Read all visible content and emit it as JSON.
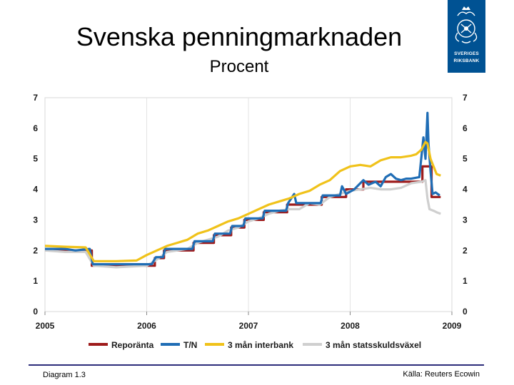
{
  "title": "Svenska penningmarknaden",
  "subtitle": "Procent",
  "logo": {
    "icon": "riksbank-crest-icon",
    "line1": "SVERIGES",
    "line2": "RIKSBANK"
  },
  "footer": {
    "left": "Diagram 1.3",
    "right": "Källa: Reuters Ecowin"
  },
  "chart_data": {
    "type": "line",
    "title": "Svenska penningmarknaden",
    "subtitle": "Procent",
    "xlabel": "",
    "ylabel": "",
    "xlim": [
      2005,
      2009
    ],
    "ylim": [
      0,
      7
    ],
    "x_ticks": [
      "2005",
      "2006",
      "2007",
      "2008",
      "2009"
    ],
    "y_ticks": [
      0,
      1,
      2,
      3,
      4,
      5,
      6,
      7
    ],
    "y_axis_both_sides": true,
    "grid": "vertical",
    "legend_position": "bottom",
    "series": [
      {
        "name": "Reporänta",
        "color": "#9e1b1b",
        "step": true,
        "points": [
          [
            2005.0,
            2.0
          ],
          [
            2005.46,
            2.0
          ],
          [
            2005.46,
            1.5
          ],
          [
            2006.08,
            1.5
          ],
          [
            2006.08,
            1.75
          ],
          [
            2006.17,
            1.75
          ],
          [
            2006.17,
            2.0
          ],
          [
            2006.46,
            2.0
          ],
          [
            2006.46,
            2.25
          ],
          [
            2006.66,
            2.25
          ],
          [
            2006.66,
            2.5
          ],
          [
            2006.83,
            2.5
          ],
          [
            2006.83,
            2.75
          ],
          [
            2006.96,
            2.75
          ],
          [
            2006.96,
            3.0
          ],
          [
            2007.15,
            3.0
          ],
          [
            2007.15,
            3.25
          ],
          [
            2007.38,
            3.25
          ],
          [
            2007.38,
            3.5
          ],
          [
            2007.72,
            3.5
          ],
          [
            2007.72,
            3.75
          ],
          [
            2007.96,
            3.75
          ],
          [
            2007.96,
            4.0
          ],
          [
            2008.13,
            4.0
          ],
          [
            2008.13,
            4.25
          ],
          [
            2008.5,
            4.25
          ],
          [
            2008.5,
            4.25
          ],
          [
            2008.71,
            4.25
          ],
          [
            2008.71,
            4.75
          ],
          [
            2008.8,
            4.75
          ],
          [
            2008.8,
            3.75
          ],
          [
            2008.89,
            3.75
          ]
        ]
      },
      {
        "name": "T/N",
        "color": "#1f6db5",
        "step": false,
        "points": [
          [
            2005.0,
            2.05
          ],
          [
            2005.2,
            2.05
          ],
          [
            2005.3,
            2.0
          ],
          [
            2005.44,
            2.05
          ],
          [
            2005.47,
            1.55
          ],
          [
            2005.7,
            1.55
          ],
          [
            2006.05,
            1.55
          ],
          [
            2006.09,
            1.78
          ],
          [
            2006.16,
            1.78
          ],
          [
            2006.18,
            2.05
          ],
          [
            2006.45,
            2.05
          ],
          [
            2006.47,
            2.3
          ],
          [
            2006.65,
            2.3
          ],
          [
            2006.67,
            2.55
          ],
          [
            2006.82,
            2.55
          ],
          [
            2006.84,
            2.8
          ],
          [
            2006.95,
            2.8
          ],
          [
            2006.97,
            3.05
          ],
          [
            2007.14,
            3.05
          ],
          [
            2007.16,
            3.3
          ],
          [
            2007.37,
            3.3
          ],
          [
            2007.39,
            3.55
          ],
          [
            2007.45,
            3.85
          ],
          [
            2007.47,
            3.55
          ],
          [
            2007.71,
            3.55
          ],
          [
            2007.73,
            3.8
          ],
          [
            2007.9,
            3.8
          ],
          [
            2007.92,
            4.1
          ],
          [
            2007.96,
            3.85
          ],
          [
            2008.04,
            4.0
          ],
          [
            2008.1,
            4.2
          ],
          [
            2008.13,
            4.3
          ],
          [
            2008.18,
            4.15
          ],
          [
            2008.25,
            4.25
          ],
          [
            2008.3,
            4.1
          ],
          [
            2008.35,
            4.4
          ],
          [
            2008.4,
            4.5
          ],
          [
            2008.45,
            4.35
          ],
          [
            2008.5,
            4.3
          ],
          [
            2008.55,
            4.35
          ],
          [
            2008.6,
            4.35
          ],
          [
            2008.68,
            4.4
          ],
          [
            2008.72,
            5.7
          ],
          [
            2008.74,
            5.0
          ],
          [
            2008.76,
            6.5
          ],
          [
            2008.77,
            5.5
          ],
          [
            2008.79,
            4.6
          ],
          [
            2008.81,
            3.85
          ],
          [
            2008.84,
            3.9
          ],
          [
            2008.88,
            3.8
          ]
        ]
      },
      {
        "name": "3 mån interbank",
        "color": "#f0c21a",
        "step": false,
        "points": [
          [
            2005.0,
            2.15
          ],
          [
            2005.2,
            2.12
          ],
          [
            2005.4,
            2.1
          ],
          [
            2005.48,
            1.65
          ],
          [
            2005.7,
            1.65
          ],
          [
            2005.9,
            1.67
          ],
          [
            2006.0,
            1.85
          ],
          [
            2006.1,
            2.0
          ],
          [
            2006.2,
            2.15
          ],
          [
            2006.3,
            2.25
          ],
          [
            2006.4,
            2.35
          ],
          [
            2006.5,
            2.55
          ],
          [
            2006.6,
            2.65
          ],
          [
            2006.7,
            2.8
          ],
          [
            2006.8,
            2.95
          ],
          [
            2006.9,
            3.05
          ],
          [
            2007.0,
            3.2
          ],
          [
            2007.1,
            3.35
          ],
          [
            2007.2,
            3.5
          ],
          [
            2007.3,
            3.6
          ],
          [
            2007.4,
            3.7
          ],
          [
            2007.5,
            3.85
          ],
          [
            2007.6,
            3.95
          ],
          [
            2007.7,
            4.15
          ],
          [
            2007.8,
            4.3
          ],
          [
            2007.9,
            4.6
          ],
          [
            2008.0,
            4.75
          ],
          [
            2008.1,
            4.8
          ],
          [
            2008.2,
            4.75
          ],
          [
            2008.3,
            4.95
          ],
          [
            2008.4,
            5.05
          ],
          [
            2008.5,
            5.05
          ],
          [
            2008.6,
            5.1
          ],
          [
            2008.65,
            5.15
          ],
          [
            2008.7,
            5.3
          ],
          [
            2008.74,
            5.55
          ],
          [
            2008.76,
            5.5
          ],
          [
            2008.79,
            5.0
          ],
          [
            2008.82,
            4.75
          ],
          [
            2008.85,
            4.5
          ],
          [
            2008.89,
            4.45
          ]
        ]
      },
      {
        "name": "3 mån statsskuldsväxel",
        "color": "#cfcfcf",
        "step": false,
        "points": [
          [
            2005.0,
            2.0
          ],
          [
            2005.2,
            1.95
          ],
          [
            2005.4,
            1.95
          ],
          [
            2005.48,
            1.5
          ],
          [
            2005.7,
            1.45
          ],
          [
            2006.0,
            1.5
          ],
          [
            2006.1,
            1.7
          ],
          [
            2006.2,
            1.95
          ],
          [
            2006.3,
            2.0
          ],
          [
            2006.4,
            2.05
          ],
          [
            2006.5,
            2.25
          ],
          [
            2006.6,
            2.35
          ],
          [
            2006.7,
            2.45
          ],
          [
            2006.8,
            2.65
          ],
          [
            2006.9,
            2.75
          ],
          [
            2007.0,
            2.95
          ],
          [
            2007.1,
            3.05
          ],
          [
            2007.2,
            3.2
          ],
          [
            2007.3,
            3.3
          ],
          [
            2007.4,
            3.35
          ],
          [
            2007.5,
            3.35
          ],
          [
            2007.6,
            3.55
          ],
          [
            2007.7,
            3.5
          ],
          [
            2007.8,
            3.75
          ],
          [
            2007.9,
            3.85
          ],
          [
            2008.0,
            3.95
          ],
          [
            2008.1,
            4.0
          ],
          [
            2008.2,
            4.05
          ],
          [
            2008.3,
            4.0
          ],
          [
            2008.4,
            4.0
          ],
          [
            2008.5,
            4.05
          ],
          [
            2008.6,
            4.2
          ],
          [
            2008.7,
            4.25
          ],
          [
            2008.74,
            4.3
          ],
          [
            2008.76,
            3.7
          ],
          [
            2008.78,
            3.35
          ],
          [
            2008.82,
            3.3
          ],
          [
            2008.85,
            3.25
          ],
          [
            2008.89,
            3.2
          ]
        ]
      }
    ]
  }
}
